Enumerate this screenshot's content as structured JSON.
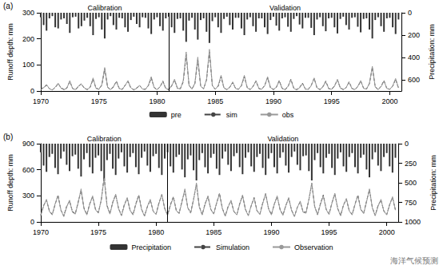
{
  "chart_data": [
    {
      "type": "line",
      "panel_label": "(a)",
      "period_labels": [
        "Calibration",
        "Validation"
      ],
      "split_x": 1981,
      "ylabel": "Runoff depth: mm",
      "y2label": "Precipitation: mm",
      "xlim": [
        1970,
        2001
      ],
      "xticks": [
        1970,
        1975,
        1980,
        1985,
        1990,
        1995,
        2000
      ],
      "ylim": [
        0,
        300
      ],
      "yticks": [
        0,
        100,
        200,
        300
      ],
      "y2lim": [
        0,
        700
      ],
      "y2ticks": [
        0,
        200,
        400,
        600
      ],
      "grid": false,
      "legend": "bottom",
      "x": [
        1970,
        1970.25,
        1970.5,
        1970.75,
        1971,
        1971.25,
        1971.5,
        1971.75,
        1972,
        1972.25,
        1972.5,
        1972.75,
        1973,
        1973.25,
        1973.5,
        1973.75,
        1974,
        1974.25,
        1974.5,
        1974.75,
        1975,
        1975.25,
        1975.5,
        1975.75,
        1976,
        1976.25,
        1976.5,
        1976.75,
        1977,
        1977.25,
        1977.5,
        1977.75,
        1978,
        1978.25,
        1978.5,
        1978.75,
        1979,
        1979.25,
        1979.5,
        1979.75,
        1980,
        1980.25,
        1980.5,
        1980.75,
        1981,
        1981.25,
        1981.5,
        1981.75,
        1982,
        1982.25,
        1982.5,
        1982.75,
        1983,
        1983.25,
        1983.5,
        1983.75,
        1984,
        1984.25,
        1984.5,
        1984.75,
        1985,
        1985.25,
        1985.5,
        1985.75,
        1986,
        1986.25,
        1986.5,
        1986.75,
        1987,
        1987.25,
        1987.5,
        1987.75,
        1988,
        1988.25,
        1988.5,
        1988.75,
        1989,
        1989.25,
        1989.5,
        1989.75,
        1990,
        1990.25,
        1990.5,
        1990.75,
        1991,
        1991.25,
        1991.5,
        1991.75,
        1992,
        1992.25,
        1992.5,
        1992.75,
        1993,
        1993.25,
        1993.5,
        1993.75,
        1994,
        1994.25,
        1994.5,
        1994.75,
        1995,
        1995.25,
        1995.5,
        1995.75,
        1996,
        1996.25,
        1996.5,
        1996.75,
        1997,
        1997.25,
        1997.5,
        1997.75,
        1998,
        1998.25,
        1998.5,
        1998.75,
        1999,
        1999.25,
        1999.5,
        1999.75,
        2000,
        2000.25,
        2000.5,
        2000.75
      ],
      "series": [
        {
          "name": "pre",
          "type": "bar",
          "axis": "y2",
          "color": "#333333",
          "values": [
            40,
            110,
            160,
            50,
            30,
            130,
            140,
            60,
            50,
            100,
            180,
            40,
            35,
            140,
            120,
            70,
            45,
            120,
            200,
            55,
            40,
            150,
            230,
            60,
            30,
            110,
            150,
            45,
            50,
            130,
            170,
            65,
            35,
            100,
            130,
            40,
            45,
            140,
            190,
            60,
            40,
            120,
            160,
            50,
            35,
            130,
            180,
            55,
            50,
            160,
            260,
            70,
            45,
            150,
            240,
            65,
            50,
            170,
            270,
            75,
            40,
            130,
            180,
            55,
            35,
            110,
            150,
            45,
            45,
            140,
            200,
            60,
            40,
            120,
            170,
            50,
            50,
            130,
            190,
            65,
            35,
            115,
            160,
            50,
            40,
            125,
            170,
            55,
            30,
            105,
            140,
            45,
            45,
            135,
            200,
            60,
            40,
            120,
            165,
            50,
            45,
            130,
            185,
            55,
            35,
            110,
            150,
            45,
            40,
            125,
            175,
            55,
            50,
            150,
            230,
            65,
            40,
            120,
            170,
            50,
            45,
            130,
            190,
            60
          ]
        },
        {
          "name": "sim",
          "type": "line",
          "color": "#444444",
          "line_style": "dashed",
          "values": [
            6,
            14,
            22,
            9,
            5,
            13,
            28,
            12,
            6,
            12,
            36,
            9,
            5,
            18,
            28,
            10,
            6,
            14,
            45,
            11,
            7,
            22,
            85,
            14,
            6,
            15,
            38,
            10,
            6,
            22,
            36,
            11,
            5,
            12,
            20,
            8,
            7,
            20,
            50,
            13,
            6,
            15,
            38,
            9,
            6,
            20,
            42,
            10,
            9,
            35,
            140,
            22,
            8,
            28,
            120,
            17,
            9,
            42,
            150,
            20,
            7,
            18,
            55,
            11,
            6,
            15,
            32,
            10,
            7,
            20,
            55,
            13,
            6,
            18,
            38,
            9,
            6,
            22,
            50,
            12,
            6,
            14,
            40,
            10,
            5,
            16,
            45,
            11,
            5,
            14,
            30,
            7,
            7,
            22,
            48,
            11,
            6,
            17,
            38,
            9,
            7,
            20,
            42,
            12,
            6,
            13,
            35,
            10,
            5,
            16,
            38,
            11,
            8,
            28,
            90,
            16,
            6,
            18,
            40,
            9,
            7,
            18,
            45,
            11
          ]
        },
        {
          "name": "obs",
          "type": "line",
          "color": "#999999",
          "line_style": "solid",
          "values": [
            5,
            12,
            25,
            8,
            4,
            15,
            30,
            10,
            5,
            10,
            40,
            8,
            6,
            20,
            25,
            12,
            5,
            15,
            50,
            10,
            6,
            25,
            90,
            15,
            5,
            18,
            35,
            9,
            7,
            20,
            40,
            12,
            4,
            10,
            22,
            7,
            6,
            22,
            55,
            12,
            5,
            16,
            35,
            10,
            5,
            18,
            45,
            11,
            8,
            40,
            150,
            20,
            7,
            30,
            130,
            18,
            8,
            45,
            160,
            22,
            6,
            20,
            60,
            12,
            5,
            14,
            35,
            9,
            6,
            22,
            60,
            12,
            5,
            16,
            40,
            10,
            7,
            20,
            55,
            13,
            5,
            15,
            38,
            9,
            6,
            18,
            42,
            10,
            4,
            12,
            28,
            8,
            6,
            20,
            50,
            12,
            5,
            15,
            35,
            10,
            6,
            18,
            45,
            11,
            5,
            14,
            32,
            9,
            6,
            18,
            40,
            10,
            7,
            30,
            95,
            15,
            5,
            16,
            38,
            10,
            6,
            20,
            48,
            12
          ]
        }
      ]
    },
    {
      "type": "line",
      "panel_label": "(b)",
      "period_labels": [
        "Calibration",
        "Validation"
      ],
      "split_x": 1981,
      "ylabel": "Runoff depth: mm",
      "y2label": "Precipitation: mm",
      "xlim": [
        1970,
        2001
      ],
      "xticks": [
        1970,
        1975,
        1980,
        1985,
        1990,
        1995,
        2000
      ],
      "ylim": [
        0,
        900
      ],
      "yticks": [
        0,
        300,
        600,
        900
      ],
      "y2lim": [
        0,
        1000
      ],
      "y2ticks": [
        0,
        250,
        500,
        750,
        1000
      ],
      "grid": false,
      "legend": "bottom",
      "x": [
        1970,
        1970.25,
        1970.5,
        1970.75,
        1971,
        1971.25,
        1971.5,
        1971.75,
        1972,
        1972.25,
        1972.5,
        1972.75,
        1973,
        1973.25,
        1973.5,
        1973.75,
        1974,
        1974.25,
        1974.5,
        1974.75,
        1975,
        1975.25,
        1975.5,
        1975.75,
        1976,
        1976.25,
        1976.5,
        1976.75,
        1977,
        1977.25,
        1977.5,
        1977.75,
        1978,
        1978.25,
        1978.5,
        1978.75,
        1979,
        1979.25,
        1979.5,
        1979.75,
        1980,
        1980.25,
        1980.5,
        1980.75,
        1981,
        1981.25,
        1981.5,
        1981.75,
        1982,
        1982.25,
        1982.5,
        1982.75,
        1983,
        1983.25,
        1983.5,
        1983.75,
        1984,
        1984.25,
        1984.5,
        1984.75,
        1985,
        1985.25,
        1985.5,
        1985.75,
        1986,
        1986.25,
        1986.5,
        1986.75,
        1987,
        1987.25,
        1987.5,
        1987.75,
        1988,
        1988.25,
        1988.5,
        1988.75,
        1989,
        1989.25,
        1989.5,
        1989.75,
        1990,
        1990.25,
        1990.5,
        1990.75,
        1991,
        1991.25,
        1991.5,
        1991.75,
        1992,
        1992.25,
        1992.5,
        1992.75,
        1993,
        1993.25,
        1993.5,
        1993.75,
        1994,
        1994.25,
        1994.5,
        1994.75,
        1995,
        1995.25,
        1995.5,
        1995.75,
        1996,
        1996.25,
        1996.5,
        1996.75,
        1997,
        1997.25,
        1997.5,
        1997.75,
        1998,
        1998.25,
        1998.5,
        1998.75,
        1999,
        1999.25,
        1999.5,
        1999.75,
        2000,
        2000.25,
        2000.5,
        2000.75
      ],
      "series": [
        {
          "name": "Precipitation",
          "type": "bar",
          "axis": "y2",
          "color": "#333333",
          "values": [
            110,
            280,
            360,
            170,
            130,
            310,
            390,
            190,
            100,
            270,
            350,
            160,
            140,
            320,
            420,
            200,
            120,
            300,
            380,
            180,
            150,
            350,
            480,
            210,
            130,
            320,
            400,
            190,
            110,
            290,
            370,
            170,
            120,
            300,
            390,
            180,
            100,
            280,
            360,
            160,
            130,
            310,
            400,
            190,
            110,
            290,
            370,
            170,
            140,
            330,
            430,
            200,
            150,
            340,
            470,
            210,
            120,
            300,
            380,
            180,
            130,
            320,
            400,
            190,
            100,
            270,
            350,
            160,
            120,
            300,
            390,
            180,
            110,
            290,
            360,
            170,
            130,
            310,
            400,
            190,
            120,
            300,
            380,
            180,
            110,
            280,
            370,
            170,
            100,
            270,
            340,
            160,
            150,
            350,
            470,
            210,
            120,
            300,
            380,
            180,
            130,
            310,
            400,
            190,
            110,
            290,
            360,
            170,
            120,
            300,
            380,
            180,
            140,
            330,
            430,
            200,
            110,
            280,
            350,
            170,
            120,
            290,
            370,
            180
          ]
        },
        {
          "name": "Simulation",
          "type": "line",
          "color": "#444444",
          "line_style": "dashed",
          "values": [
            80,
            190,
            250,
            130,
            85,
            200,
            310,
            135,
            70,
            180,
            240,
            120,
            95,
            230,
            360,
            160,
            85,
            210,
            290,
            145,
            110,
            250,
            520,
            190,
            95,
            230,
            310,
            155,
            75,
            200,
            270,
            135,
            85,
            210,
            310,
            145,
            70,
            175,
            250,
            125,
            90,
            220,
            310,
            155,
            80,
            200,
            290,
            135,
            100,
            240,
            360,
            165,
            105,
            260,
            430,
            175,
            85,
            210,
            290,
            145,
            95,
            215,
            330,
            155,
            70,
            180,
            240,
            120,
            85,
            210,
            300,
            145,
            75,
            185,
            280,
            130,
            90,
            220,
            320,
            155,
            85,
            205,
            290,
            145,
            80,
            190,
            270,
            135,
            65,
            170,
            230,
            115,
            110,
            255,
            440,
            180,
            85,
            210,
            310,
            145,
            90,
            220,
            320,
            155,
            75,
            195,
            260,
            130,
            85,
            205,
            310,
            145,
            100,
            240,
            370,
            165,
            75,
            190,
            250,
            125,
            85,
            200,
            280,
            140
          ]
        },
        {
          "name": "Observation",
          "type": "line",
          "color": "#999999",
          "line_style": "solid",
          "values": [
            70,
            180,
            260,
            120,
            80,
            210,
            300,
            140,
            60,
            170,
            250,
            110,
            90,
            220,
            380,
            150,
            80,
            200,
            300,
            140,
            100,
            260,
            500,
            180,
            90,
            220,
            320,
            150,
            70,
            190,
            280,
            130,
            80,
            200,
            300,
            140,
            65,
            180,
            260,
            120,
            85,
            210,
            320,
            150,
            75,
            190,
            280,
            130,
            95,
            230,
            380,
            160,
            100,
            250,
            450,
            170,
            80,
            200,
            300,
            140,
            90,
            220,
            320,
            150,
            65,
            170,
            250,
            115,
            80,
            200,
            310,
            140,
            70,
            190,
            270,
            125,
            85,
            210,
            330,
            150,
            80,
            200,
            300,
            140,
            75,
            185,
            280,
            130,
            60,
            165,
            240,
            110,
            100,
            260,
            450,
            175,
            80,
            200,
            300,
            140,
            85,
            215,
            330,
            150,
            70,
            190,
            270,
            125,
            80,
            200,
            300,
            140,
            95,
            230,
            380,
            160,
            70,
            180,
            260,
            120,
            80,
            195,
            290,
            135
          ]
        }
      ]
    }
  ],
  "watermark": "海洋气候预测"
}
